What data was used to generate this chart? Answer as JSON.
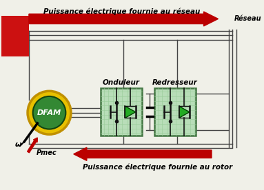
{
  "bg_color": "#f0f0e8",
  "top_arrow_text": "Puissance électrique fournie au réseau",
  "bottom_arrow_text": "Puissance électrique fournie au rotor",
  "reseau_text": "Réseau",
  "dfam_text": "DFAM",
  "onduleur_text": "Onduleur",
  "redresseur_text": "Redresseur",
  "omega_text": "ω",
  "pmec_text": "Pmec",
  "arrow_color": "#bb0000",
  "box_fill": "#b8ddb8",
  "box_edge": "#447744",
  "grid_line": "#99cc99",
  "wire_color": "#444444",
  "motor_yellow": "#e8c000",
  "motor_yellow_edge": "#c09000",
  "motor_green": "#338833",
  "motor_green_edge": "#114411",
  "red_rect_color": "#cc1111",
  "diode_fill": "#22aa22",
  "diode_edge": "#004400",
  "symbol_color": "#111111"
}
